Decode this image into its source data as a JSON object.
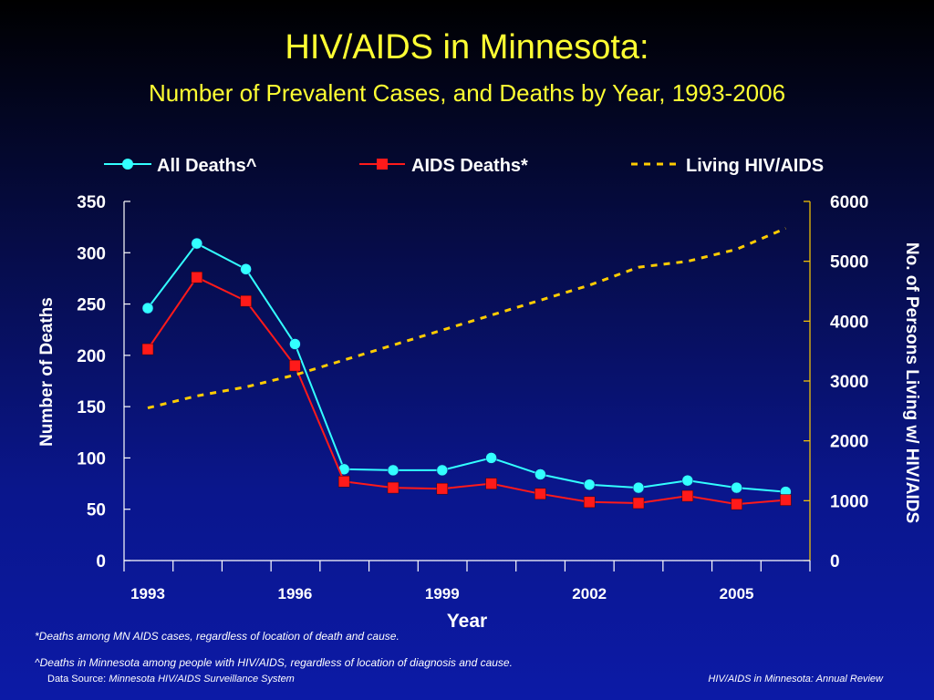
{
  "title": "HIV/AIDS in Minnesota:",
  "subtitle": "Number of Prevalent Cases, and Deaths by Year, 1993-2006",
  "footnotes": {
    "aids_deaths": "*Deaths among MN AIDS cases, regardless of location of death and cause.",
    "all_deaths": "^Deaths in Minnesota among people with HIV/AIDS, regardless of location of diagnosis and cause."
  },
  "footer": {
    "source_label": "Data Source: ",
    "source_name": "Minnesota HIV/AIDS Surveillance System",
    "right": "HIV/AIDS in Minnesota: Annual Review"
  },
  "chart_data": {
    "type": "line",
    "x": [
      1993,
      1994,
      1995,
      1996,
      1997,
      1998,
      1999,
      2000,
      2001,
      2002,
      2003,
      2004,
      2005,
      2006
    ],
    "x_tick_labels": [
      "1993",
      "1996",
      "1999",
      "2002",
      "2005"
    ],
    "x_tick_label_years": [
      1993,
      1996,
      1999,
      2002,
      2005
    ],
    "xlabel": "Year",
    "ylabel": "Number of Deaths",
    "ylim": [
      0,
      350
    ],
    "y_ticks": [
      0,
      50,
      100,
      150,
      200,
      250,
      300,
      350
    ],
    "y2label": "No. of Persons Living w/ HIV/AIDS",
    "y2lim": [
      0,
      6000
    ],
    "y2_ticks": [
      0,
      1000,
      2000,
      3000,
      4000,
      5000,
      6000
    ],
    "legend_position": "top",
    "grid": false,
    "series": [
      {
        "name": "All Deaths^",
        "axis": "left",
        "color": "#33ffff",
        "marker": "circle",
        "values": [
          246,
          309,
          284,
          211,
          89,
          88,
          88,
          100,
          84,
          74,
          71,
          78,
          71,
          67
        ]
      },
      {
        "name": "AIDS Deaths*",
        "axis": "left",
        "color": "#ff1a1a",
        "marker": "square",
        "values": [
          206,
          276,
          253,
          190,
          77,
          71,
          70,
          75,
          65,
          57,
          56,
          63,
          55,
          59
        ]
      },
      {
        "name": "Living HIV/AIDS",
        "axis": "right",
        "color": "#ffcc00",
        "style": "dashed",
        "values": [
          2550,
          2750,
          2900,
          3100,
          3350,
          3600,
          3850,
          4100,
          4350,
          4600,
          4900,
          5000,
          5200,
          5550
        ]
      }
    ]
  }
}
